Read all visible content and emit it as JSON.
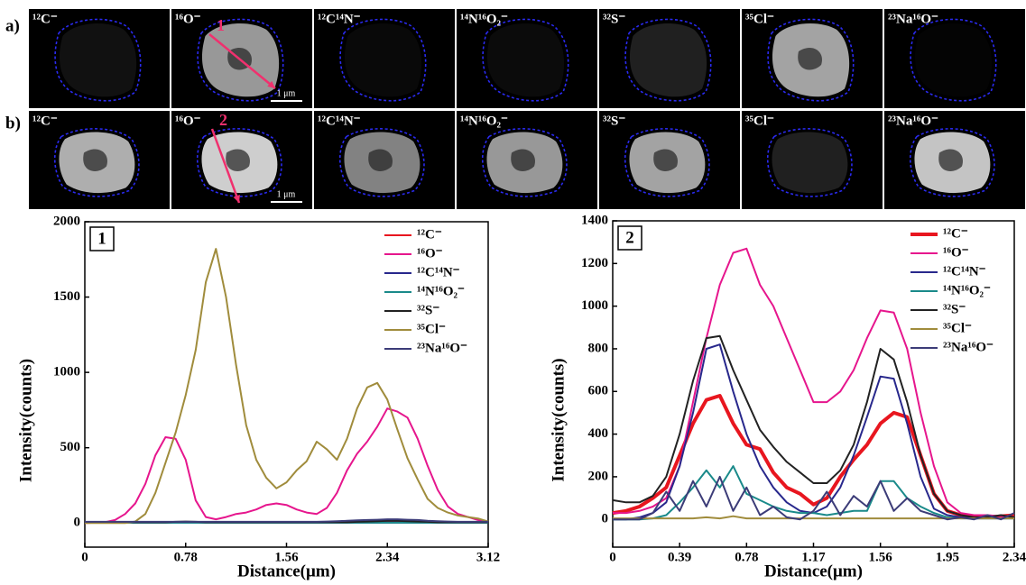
{
  "row_labels": [
    "a)",
    "b)"
  ],
  "scale_bar": "1 μm",
  "chart_data": [
    {
      "type": "line",
      "panel_label": "1",
      "xlabel": "Distance(μm)",
      "ylabel": "Intensity(counts)",
      "legend": "upper right",
      "xlim": [
        0,
        3.12
      ],
      "xticks": [
        0,
        0.78,
        1.56,
        2.34,
        3.12
      ],
      "ylim": [
        -160,
        2000
      ],
      "yticks": [
        0,
        500,
        1000,
        1500,
        2000
      ],
      "x": [
        0,
        0.078,
        0.156,
        0.234,
        0.312,
        0.39,
        0.468,
        0.546,
        0.624,
        0.702,
        0.78,
        0.858,
        0.936,
        1.014,
        1.092,
        1.17,
        1.248,
        1.326,
        1.404,
        1.482,
        1.56,
        1.638,
        1.716,
        1.794,
        1.872,
        1.95,
        2.028,
        2.106,
        2.184,
        2.262,
        2.34,
        2.418,
        2.496,
        2.574,
        2.652,
        2.73,
        2.808,
        2.886,
        2.964,
        3.042,
        3.12
      ],
      "series": [
        {
          "name": "¹²C⁻",
          "color": "#e8161f",
          "values": [
            5,
            5,
            5,
            5,
            5,
            5,
            5,
            5,
            5,
            5,
            5,
            5,
            5,
            5,
            5,
            5,
            5,
            5,
            5,
            5,
            5,
            5,
            5,
            5,
            5,
            5,
            5,
            5,
            8,
            10,
            10,
            8,
            5,
            5,
            5,
            5,
            5,
            5,
            5,
            5,
            5
          ]
        },
        {
          "name": "¹⁶O⁻",
          "color": "#e6168d",
          "values": [
            0,
            2,
            5,
            20,
            60,
            130,
            260,
            450,
            570,
            560,
            420,
            150,
            40,
            25,
            40,
            60,
            70,
            90,
            120,
            130,
            120,
            90,
            70,
            60,
            100,
            200,
            350,
            460,
            540,
            640,
            760,
            740,
            700,
            560,
            380,
            220,
            110,
            60,
            40,
            20,
            10
          ]
        },
        {
          "name": "¹²C¹⁴N⁻",
          "color": "#28288c",
          "values": [
            3,
            3,
            3,
            3,
            3,
            3,
            3,
            3,
            3,
            3,
            3,
            3,
            3,
            3,
            3,
            3,
            3,
            3,
            3,
            3,
            3,
            3,
            3,
            3,
            3,
            3,
            3,
            3,
            3,
            3,
            3,
            3,
            3,
            3,
            3,
            3,
            3,
            3,
            3,
            3,
            3
          ]
        },
        {
          "name": "¹⁴N¹⁶O₂⁻",
          "color": "#1a8a8a",
          "values": [
            2,
            2,
            2,
            2,
            2,
            2,
            2,
            2,
            2,
            2,
            2,
            2,
            2,
            2,
            2,
            2,
            2,
            2,
            2,
            2,
            2,
            2,
            2,
            2,
            2,
            2,
            2,
            2,
            2,
            2,
            2,
            2,
            2,
            2,
            2,
            2,
            2,
            2,
            2,
            2,
            2
          ]
        },
        {
          "name": "³²S⁻",
          "color": "#222222",
          "values": [
            5,
            5,
            5,
            5,
            5,
            5,
            5,
            5,
            5,
            8,
            10,
            8,
            5,
            5,
            5,
            5,
            5,
            5,
            5,
            5,
            5,
            5,
            5,
            5,
            5,
            5,
            5,
            8,
            10,
            12,
            15,
            15,
            12,
            10,
            8,
            5,
            5,
            5,
            5,
            5,
            5
          ]
        },
        {
          "name": "³⁵Cl⁻",
          "color": "#a08c3c",
          "values": [
            0,
            0,
            0,
            0,
            0,
            10,
            60,
            200,
            400,
            600,
            850,
            1150,
            1600,
            1820,
            1500,
            1050,
            650,
            420,
            300,
            230,
            270,
            350,
            410,
            540,
            490,
            420,
            560,
            760,
            900,
            930,
            820,
            620,
            430,
            290,
            160,
            100,
            70,
            50,
            40,
            30,
            10
          ]
        },
        {
          "name": "²³Na¹⁶O⁻",
          "color": "#3c3c78",
          "values": [
            8,
            8,
            8,
            8,
            8,
            8,
            8,
            8,
            8,
            8,
            8,
            8,
            8,
            8,
            8,
            8,
            8,
            8,
            8,
            8,
            8,
            8,
            8,
            8,
            10,
            12,
            15,
            18,
            20,
            22,
            25,
            25,
            22,
            20,
            15,
            12,
            10,
            8,
            8,
            8,
            8
          ]
        }
      ]
    },
    {
      "type": "line",
      "panel_label": "2",
      "xlabel": "Distance(μm)",
      "ylabel": "Intensity(counts)",
      "legend": "upper right",
      "xlim": [
        0,
        2.34
      ],
      "xticks": [
        0,
        0.39,
        0.78,
        1.17,
        1.56,
        1.95,
        2.34
      ],
      "ylim": [
        -130,
        1400
      ],
      "yticks": [
        0,
        200,
        400,
        600,
        800,
        1000,
        1200,
        1400
      ],
      "x": [
        0,
        0.078,
        0.156,
        0.234,
        0.312,
        0.39,
        0.468,
        0.546,
        0.624,
        0.702,
        0.78,
        0.858,
        0.936,
        1.014,
        1.092,
        1.17,
        1.248,
        1.326,
        1.404,
        1.482,
        1.56,
        1.638,
        1.716,
        1.794,
        1.872,
        1.95,
        2.028,
        2.106,
        2.184,
        2.262,
        2.34
      ],
      "series": [
        {
          "name": "¹²C⁻",
          "color": "#e8161f",
          "line_width": 4,
          "values": [
            30,
            40,
            60,
            100,
            150,
            300,
            450,
            560,
            580,
            450,
            350,
            330,
            220,
            150,
            120,
            70,
            100,
            200,
            280,
            350,
            450,
            500,
            480,
            300,
            120,
            40,
            20,
            10,
            10,
            15,
            20
          ]
        },
        {
          "name": "¹⁶O⁻",
          "color": "#e6168d",
          "values": [
            30,
            30,
            40,
            60,
            100,
            250,
            550,
            850,
            1100,
            1250,
            1270,
            1100,
            1000,
            850,
            700,
            550,
            550,
            600,
            700,
            850,
            980,
            970,
            800,
            500,
            250,
            80,
            30,
            20,
            20,
            15,
            10
          ]
        },
        {
          "name": "¹²C¹⁴N⁻",
          "color": "#28288c",
          "values": [
            0,
            0,
            10,
            30,
            80,
            250,
            500,
            800,
            820,
            600,
            400,
            250,
            150,
            80,
            40,
            30,
            60,
            150,
            300,
            480,
            670,
            660,
            450,
            200,
            50,
            20,
            10,
            5,
            5,
            5,
            5
          ]
        },
        {
          "name": "¹⁴N¹⁶O₂⁻",
          "color": "#1a8a8a",
          "values": [
            0,
            0,
            0,
            5,
            20,
            80,
            150,
            230,
            150,
            250,
            120,
            90,
            60,
            40,
            30,
            30,
            20,
            30,
            40,
            40,
            180,
            180,
            100,
            60,
            30,
            10,
            5,
            5,
            5,
            5,
            5
          ]
        },
        {
          "name": "³²S⁻",
          "color": "#222222",
          "values": [
            90,
            80,
            80,
            110,
            200,
            400,
            650,
            850,
            860,
            700,
            560,
            420,
            340,
            270,
            220,
            170,
            170,
            230,
            350,
            550,
            800,
            750,
            550,
            300,
            120,
            40,
            20,
            10,
            10,
            20,
            10
          ]
        },
        {
          "name": "³⁵Cl⁻",
          "color": "#a08c3c",
          "values": [
            5,
            5,
            5,
            5,
            5,
            5,
            5,
            10,
            5,
            15,
            5,
            5,
            5,
            5,
            5,
            5,
            5,
            5,
            5,
            5,
            5,
            5,
            5,
            5,
            5,
            5,
            5,
            5,
            5,
            5,
            5
          ]
        },
        {
          "name": "²³Na¹⁶O⁻",
          "color": "#3c3c78",
          "values": [
            0,
            0,
            0,
            30,
            130,
            40,
            180,
            60,
            200,
            40,
            150,
            20,
            60,
            10,
            0,
            40,
            130,
            20,
            110,
            60,
            180,
            40,
            100,
            40,
            20,
            0,
            10,
            0,
            20,
            0,
            30
          ]
        }
      ]
    }
  ]
}
